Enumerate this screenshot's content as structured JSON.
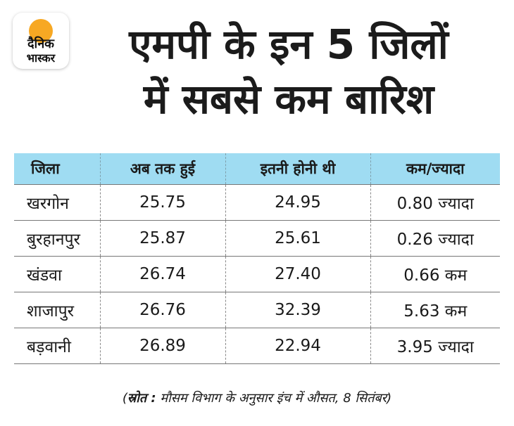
{
  "brand": {
    "logo_line1": "दैनिक",
    "logo_line2": "भास्कर",
    "accent": "#f7a823"
  },
  "title": {
    "line1": "एमपी के इन 5 जिलों",
    "line2": "में सबसे कम बारिश"
  },
  "table": {
    "headers": [
      "जिला",
      "अब तक हुई",
      "इतनी होनी थी",
      "कम/ज्यादा"
    ],
    "header_bg": "#9fdcf2",
    "rows": [
      [
        "खरगोन",
        "25.75",
        "24.95",
        "0.80 ज्यादा"
      ],
      [
        "बुरहानपुर",
        "25.87",
        "25.61",
        "0.26 ज्यादा"
      ],
      [
        "खंडवा",
        "26.74",
        "27.40",
        "0.66 कम"
      ],
      [
        "शाजापुर",
        "26.76",
        "32.39",
        "5.63 कम"
      ],
      [
        "बड़वानी",
        "26.89",
        "22.94",
        "3.95 ज्यादा"
      ]
    ]
  },
  "source": {
    "label": "स्रोत :",
    "text": " मौसम विभाग के अनुसार इंच में औसत, 8 सितंबर"
  },
  "chart_data": {
    "type": "table",
    "title": "एमपी के इन 5 जिलों में सबसे कम बारिश",
    "columns": [
      "जिला",
      "अब तक हुई",
      "इतनी होनी थी",
      "कम/ज्यादा"
    ],
    "categories": [
      "खरगोन",
      "बुरहानपुर",
      "खंडवा",
      "शाजापुर",
      "बड़वानी"
    ],
    "series": [
      {
        "name": "अब तक हुई",
        "values": [
          25.75,
          25.87,
          26.74,
          26.76,
          26.89
        ]
      },
      {
        "name": "इतनी होनी थी",
        "values": [
          24.95,
          25.61,
          27.4,
          32.39,
          22.94
        ]
      },
      {
        "name": "कम/ज्यादा",
        "values": [
          0.8,
          0.26,
          0.66,
          5.63,
          3.95
        ]
      }
    ]
  }
}
